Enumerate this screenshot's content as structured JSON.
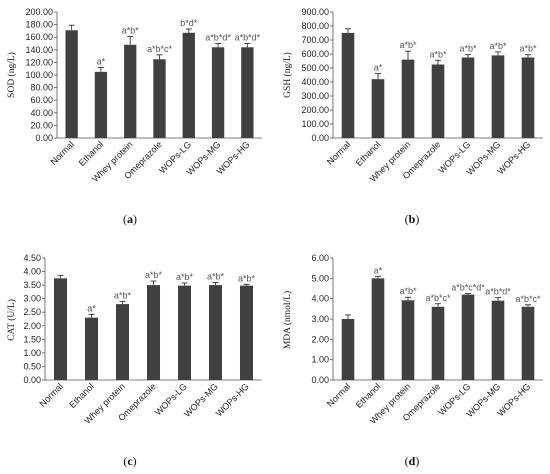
{
  "chart_data": [
    {
      "type": "bar",
      "panel_label": "a",
      "ylabel": "SOD (ng/L)",
      "categories": [
        "Normal",
        "Ethanol",
        "Whey protein",
        "Omeprazole",
        "WOPs-LG",
        "WOPs-MG",
        "WOPs-HG"
      ],
      "values": [
        171,
        105,
        148,
        125,
        167,
        144,
        144
      ],
      "errors": [
        8,
        7,
        13,
        7,
        6,
        6,
        6
      ],
      "annotations": [
        "",
        "a*",
        "a*b*",
        "a*b*c*",
        "b*d*",
        "a*b*d*",
        "a*b*d*"
      ],
      "ylim": [
        0,
        200
      ],
      "yticks": [
        "0.00",
        "20.00",
        "40.00",
        "60.00",
        "80.00",
        "100.00",
        "120.00",
        "140.00",
        "160.00",
        "180.00",
        "200.00"
      ],
      "bar_color": "#404040"
    },
    {
      "type": "bar",
      "panel_label": "b",
      "ylabel": "GSH (ng/L)",
      "categories": [
        "Normal",
        "Ethanol",
        "Whey protein",
        "Omeprazole",
        "WOPs-LG",
        "WOPs-MG",
        "WOPs-HG"
      ],
      "values": [
        750,
        420,
        560,
        525,
        575,
        590,
        575
      ],
      "errors": [
        30,
        40,
        60,
        30,
        20,
        25,
        20
      ],
      "annotations": [
        "",
        "a*",
        "a*b*",
        "a*b*",
        "a*b*",
        "a*b*",
        "a*b*"
      ],
      "ylim": [
        0,
        900
      ],
      "yticks": [
        "0.00",
        "100.00",
        "200.00",
        "300.00",
        "400.00",
        "500.00",
        "600.00",
        "700.00",
        "800.00",
        "900.00"
      ],
      "bar_color": "#404040"
    },
    {
      "type": "bar",
      "panel_label": "c",
      "ylabel": "CAT (U/L)",
      "categories": [
        "Normal",
        "Ethanol",
        "Whey protein",
        "Omeprazole",
        "WOPs-LG",
        "WOPs-MG",
        "WOPs-HG"
      ],
      "values": [
        3.75,
        2.3,
        2.8,
        3.5,
        3.48,
        3.5,
        3.48
      ],
      "errors": [
        0.1,
        0.12,
        0.1,
        0.15,
        0.1,
        0.1,
        0.05
      ],
      "annotations": [
        "",
        "a*",
        "a*b*",
        "a*b*",
        "a*b*",
        "a*b*",
        "a*b*"
      ],
      "ylim": [
        0,
        4.5
      ],
      "yticks": [
        "0.00",
        "0.50",
        "1.00",
        "1.50",
        "2.00",
        "2.50",
        "3.00",
        "3.50",
        "4.00",
        "4.50"
      ],
      "bar_color": "#404040"
    },
    {
      "type": "bar",
      "panel_label": "d",
      "ylabel": "MDA (nmol/L)",
      "categories": [
        "Normal",
        "Ethanol",
        "Whey protein",
        "Omeprazole",
        "WOPs-LG",
        "WOPs-MG",
        "WOPs-HG"
      ],
      "values": [
        3.0,
        5.0,
        3.92,
        3.6,
        4.2,
        3.9,
        3.6
      ],
      "errors": [
        0.2,
        0.1,
        0.15,
        0.15,
        0.05,
        0.15,
        0.1
      ],
      "annotations": [
        "",
        "a*",
        "a*b*",
        "a*b*c*",
        "a*b*c*d*",
        "a*b*d*",
        "a*b*c*"
      ],
      "ylim": [
        0,
        6
      ],
      "yticks": [
        "0.00",
        "1.00",
        "2.00",
        "3.00",
        "4.00",
        "5.00",
        "6.00"
      ],
      "bar_color": "#404040"
    }
  ]
}
